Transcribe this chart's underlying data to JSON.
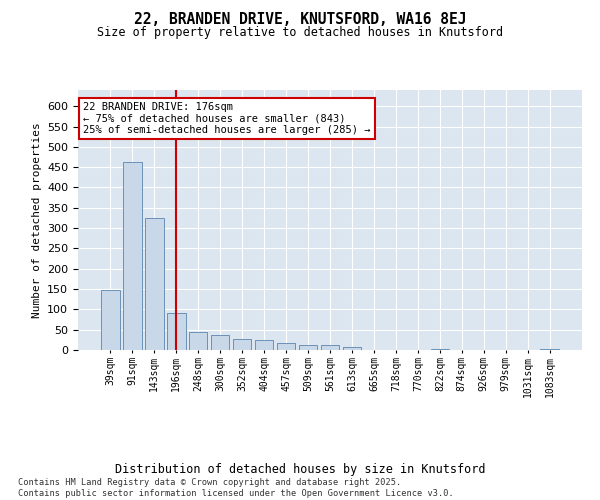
{
  "title": "22, BRANDEN DRIVE, KNUTSFORD, WA16 8EJ",
  "subtitle": "Size of property relative to detached houses in Knutsford",
  "xlabel": "Distribution of detached houses by size in Knutsford",
  "ylabel": "Number of detached properties",
  "categories": [
    "39sqm",
    "91sqm",
    "143sqm",
    "196sqm",
    "248sqm",
    "300sqm",
    "352sqm",
    "404sqm",
    "457sqm",
    "509sqm",
    "561sqm",
    "613sqm",
    "665sqm",
    "718sqm",
    "770sqm",
    "822sqm",
    "874sqm",
    "926sqm",
    "979sqm",
    "1031sqm",
    "1083sqm"
  ],
  "values": [
    148,
    462,
    325,
    90,
    45,
    38,
    28,
    25,
    18,
    12,
    12,
    8,
    0,
    0,
    0,
    2,
    0,
    0,
    0,
    0,
    2
  ],
  "bar_color": "#c8d8e8",
  "bar_edge_color": "#5a85b0",
  "bg_color": "#dce6f0",
  "grid_color": "#ffffff",
  "vline_x": 3,
  "vline_color": "#cc0000",
  "annotation_text": "22 BRANDEN DRIVE: 176sqm\n← 75% of detached houses are smaller (843)\n25% of semi-detached houses are larger (285) →",
  "annotation_box_color": "#cc0000",
  "footer": "Contains HM Land Registry data © Crown copyright and database right 2025.\nContains public sector information licensed under the Open Government Licence v3.0.",
  "ylim": [
    0,
    640
  ],
  "figsize": [
    6.0,
    5.0
  ],
  "dpi": 100
}
